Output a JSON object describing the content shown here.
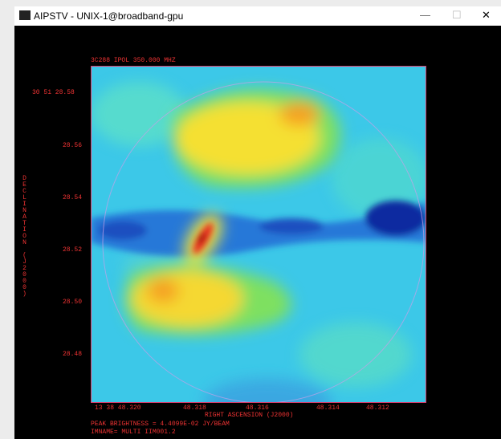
{
  "window": {
    "title": "AIPSTV - UNIX-1@broadband-gpu"
  },
  "plot": {
    "header": "3C288 IPOL  350.000 MHZ",
    "y_tick_labels": [
      "30 51 28.58",
      "28.56",
      "28.54",
      "28.52",
      "28.50",
      "28.48"
    ],
    "x_tick_labels": [
      "13 38 48.320",
      "48.318",
      "48.316",
      "48.314",
      "48.312"
    ],
    "y_axis_label": "DECLINATION (J2000)",
    "x_axis_label": "RIGHT ASCENSION (J2000)",
    "footer": [
      "PEAK BRIGHTNESS = 4.4099E-02 JY/BEAM",
      "IMNAME= MULTI IIM001.2"
    ]
  }
}
